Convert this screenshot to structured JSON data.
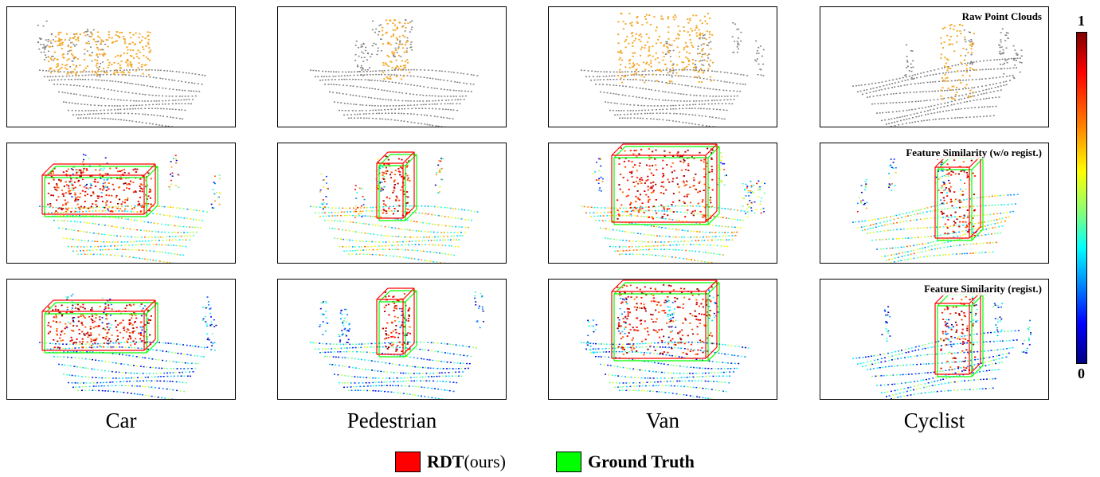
{
  "columns": [
    "Car",
    "Pedestrian",
    "Van",
    "Cyclist"
  ],
  "row_labels": [
    "Raw Point Clouds",
    "Feature Similarity (w/o regist.)",
    "Feature Similarity (regist.)"
  ],
  "colorbar": {
    "max_label": "1",
    "min_label": "0"
  },
  "legend": {
    "items": [
      {
        "label_bold": "RDT",
        "label_rest": " (ours)",
        "color": "#ff0000"
      },
      {
        "label_bold": "Ground Truth",
        "label_rest": "",
        "color": "#00ff00"
      }
    ]
  },
  "colors": {
    "raw_points": "#7f7f7f",
    "target_points": "#f5a623",
    "box_pred": "#ff0000",
    "box_gt": "#00ff00"
  }
}
